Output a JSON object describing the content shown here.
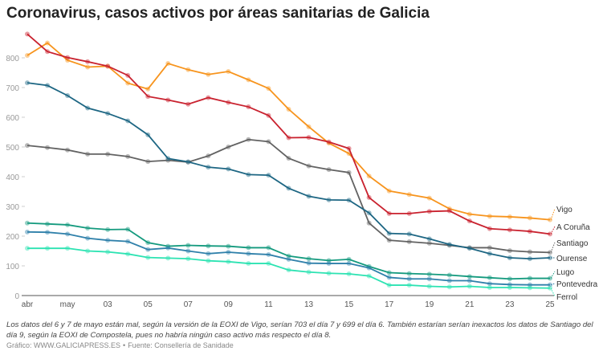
{
  "chart_data": {
    "type": "line",
    "title": "Coronavirus, casos activos por áreas sanitarias de Galicia",
    "xlabel": "",
    "ylabel": "",
    "x": [
      "2020-04-29",
      "2020-04-30",
      "2020-05-01",
      "2020-05-02",
      "2020-05-03",
      "2020-05-04",
      "2020-05-05",
      "2020-05-06",
      "2020-05-07",
      "2020-05-08",
      "2020-05-09",
      "2020-05-10",
      "2020-05-11",
      "2020-05-12",
      "2020-05-13",
      "2020-05-14",
      "2020-05-15",
      "2020-05-16",
      "2020-05-17",
      "2020-05-18",
      "2020-05-19",
      "2020-05-20",
      "2020-05-21",
      "2020-05-22",
      "2020-05-23",
      "2020-05-24",
      "2020-05-25"
    ],
    "x_tick_labels": [
      "abr",
      "may",
      "03",
      "05",
      "07",
      "09",
      "11",
      "13",
      "15",
      "17",
      "19",
      "21",
      "23",
      "25"
    ],
    "y_ticks": [
      0,
      100,
      200,
      300,
      400,
      500,
      600,
      700,
      800
    ],
    "ylim": [
      0,
      880
    ],
    "grid": false,
    "legend": "labels at line ends (right)",
    "series": [
      {
        "name": "Vigo",
        "color": "#f7941d",
        "values": [
          808,
          850,
          792,
          769,
          772,
          715,
          695,
          781,
          760,
          744,
          754,
          726,
          697,
          627,
          568,
          513,
          478,
          402,
          352,
          340,
          328,
          292,
          274,
          267,
          265,
          261,
          255
        ]
      },
      {
        "name": "A Coruña",
        "color": "#c9222f",
        "values": [
          880,
          821,
          801,
          787,
          772,
          741,
          670,
          658,
          644,
          666,
          650,
          635,
          606,
          531,
          532,
          517,
          495,
          330,
          276,
          276,
          283,
          285,
          251,
          225,
          221,
          216,
          207
        ]
      },
      {
        "name": "Santiago",
        "color": "#626262",
        "values": [
          505,
          498,
          490,
          476,
          476,
          468,
          451,
          455,
          449,
          470,
          500,
          525,
          518,
          462,
          436,
          424,
          414,
          244,
          186,
          181,
          176,
          169,
          161,
          161,
          151,
          147,
          145
        ]
      },
      {
        "name": "Ourense",
        "color": "#1d6683",
        "values": [
          716,
          707,
          673,
          631,
          613,
          588,
          541,
          461,
          450,
          432,
          426,
          407,
          405,
          361,
          334,
          322,
          321,
          278,
          209,
          207,
          191,
          172,
          159,
          141,
          127,
          124,
          127
        ]
      },
      {
        "name": "Lugo",
        "color": "#149a7e",
        "values": [
          244,
          241,
          238,
          227,
          222,
          223,
          178,
          166,
          169,
          167,
          166,
          161,
          161,
          133,
          124,
          118,
          122,
          98,
          77,
          74,
          72,
          69,
          64,
          60,
          56,
          58,
          58
        ]
      },
      {
        "name": "Pontevedra",
        "color": "#2f80aa",
        "values": [
          214,
          213,
          207,
          193,
          186,
          182,
          155,
          160,
          150,
          141,
          146,
          141,
          138,
          122,
          109,
          108,
          108,
          93,
          61,
          56,
          56,
          50,
          50,
          40,
          37,
          36,
          36
        ]
      },
      {
        "name": "Ferrol",
        "color": "#2ce3b2",
        "values": [
          159,
          159,
          159,
          150,
          147,
          140,
          128,
          126,
          124,
          117,
          114,
          108,
          108,
          86,
          79,
          75,
          73,
          66,
          35,
          35,
          31,
          29,
          31,
          27,
          27,
          26,
          25
        ]
      }
    ]
  },
  "note": "Los datos del 6 y 7 de mayo están mal, según la versión de la EOXI de Vigo, serían 703 el día 7 y 699 el día 6. También estarían serían inexactos los datos de Santiago del día 9, según la EOXI de Compostela, pues no habría ningún caso activo más respecto el día 8.",
  "credit": {
    "chart": "Gráfico: WWW.GALICIAPRESS.ES",
    "separator": "•",
    "source": "Fuente: Consellería de Sanidade"
  }
}
